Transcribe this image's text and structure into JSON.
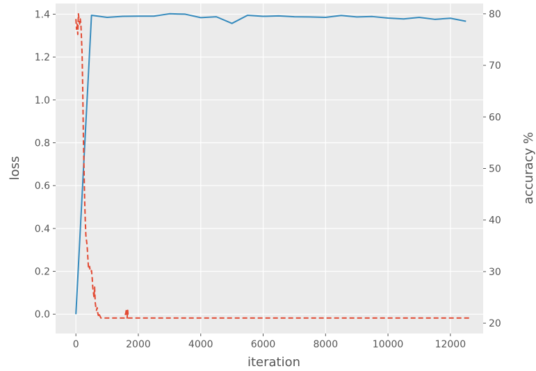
{
  "chart_data": {
    "type": "line",
    "title": "",
    "xlabel": "iteration",
    "ylabel": "loss",
    "y2label": "accuracy %",
    "xlim": [
      -650,
      13050
    ],
    "ylim": [
      -0.09,
      1.45
    ],
    "y2lim": [
      18.0,
      82.0
    ],
    "xticks": [
      0,
      2000,
      4000,
      6000,
      8000,
      10000,
      12000
    ],
    "yticks": [
      0.0,
      0.2,
      0.4,
      0.6,
      0.8,
      1.0,
      1.2,
      1.4
    ],
    "y2ticks": [
      20,
      30,
      40,
      50,
      60,
      70,
      80
    ],
    "grid": true,
    "background": "#ebebeb",
    "grid_color": "#ffffff",
    "tick_label_color": "#555555",
    "series": [
      {
        "axis": "left",
        "color": "#348abd",
        "style": "solid",
        "x": [
          0,
          500,
          1000,
          1500,
          2000,
          2500,
          3000,
          3500,
          4000,
          4500,
          5000,
          5500,
          6000,
          6500,
          7000,
          7500,
          8000,
          8500,
          9000,
          9500,
          10000,
          10500,
          11000,
          11500,
          12000,
          12500
        ],
        "y": [
          0.0,
          1.395,
          1.385,
          1.39,
          1.391,
          1.391,
          1.402,
          1.4,
          1.384,
          1.388,
          1.357,
          1.395,
          1.39,
          1.392,
          1.388,
          1.387,
          1.385,
          1.394,
          1.387,
          1.389,
          1.382,
          1.378,
          1.385,
          1.376,
          1.381,
          1.367
        ]
      },
      {
        "axis": "right",
        "color": "#e24a33",
        "style": "dashed",
        "x": [
          0,
          20,
          40,
          60,
          80,
          100,
          120,
          140,
          160,
          180,
          200,
          220,
          240,
          260,
          280,
          300,
          320,
          340,
          360,
          380,
          400,
          420,
          440,
          460,
          480,
          500,
          520,
          540,
          560,
          580,
          600,
          620,
          640,
          660,
          680,
          700,
          720,
          740,
          760,
          780,
          800,
          850,
          900,
          950,
          1000,
          1100,
          1200,
          1300,
          1400,
          1500,
          1550,
          1600,
          1620,
          1640,
          1660,
          1680,
          1700,
          1800,
          2000,
          2500,
          3000,
          4000,
          5000,
          6000,
          7000,
          8000,
          9000,
          10000,
          11000,
          12000,
          12600
        ],
        "y": [
          79,
          77,
          78,
          76,
          80,
          79,
          78,
          79,
          78,
          75,
          72,
          65,
          56,
          50,
          44,
          40,
          37,
          36,
          35,
          33,
          31,
          30.5,
          31,
          30,
          30,
          30.2,
          29,
          27,
          26,
          25,
          27,
          24,
          23,
          22.5,
          23,
          22,
          21.5,
          22,
          21.5,
          21.3,
          21,
          21,
          21,
          21,
          21,
          21,
          21,
          21,
          21,
          21,
          21,
          22,
          22.8,
          21,
          22.5,
          21,
          21,
          21,
          21,
          21,
          21,
          21,
          21,
          21,
          21,
          21,
          21,
          21,
          21,
          21,
          21
        ]
      }
    ]
  }
}
